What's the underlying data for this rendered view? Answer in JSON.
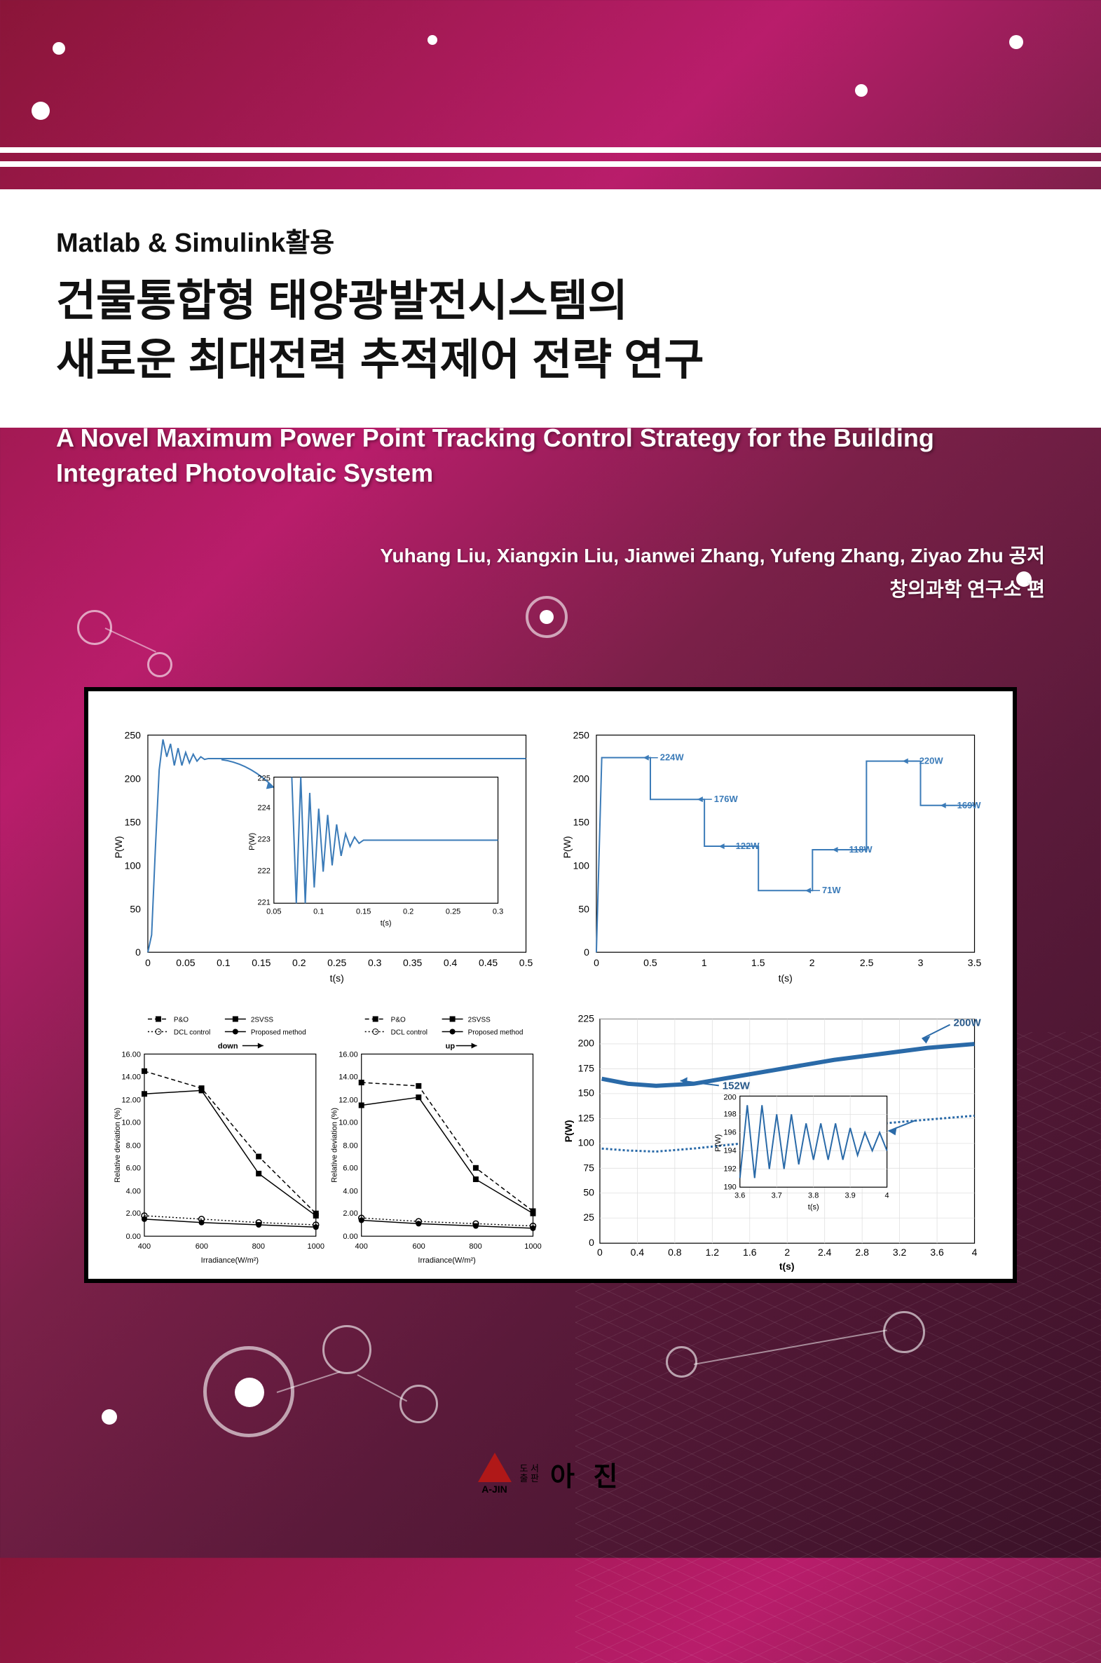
{
  "header": {
    "subtitle": "Matlab & Simulink활용",
    "title_line1": "건물통합형 태양광발전시스템의",
    "title_line2": "새로운 최대전력 추적제어 전략 연구",
    "english_title": "A Novel Maximum Power Point Tracking Control Strategy for the Building Integrated Photovoltaic System",
    "authors": "Yuhang Liu, Xiangxin Liu, Jianwei Zhang, Yufeng Zhang, Ziyao Zhu 공저",
    "editor": "창의과학 연구소 편"
  },
  "publisher": {
    "logo_text": "A-JIN",
    "small_left1": "도 서",
    "small_left2": "출 판",
    "name": "아 진",
    "triangle_color": "#b01818"
  },
  "charts": {
    "chart1": {
      "type": "line",
      "ylabel": "P(W)",
      "xlabel": "t(s)",
      "xlim": [
        0,
        0.5
      ],
      "xticks": [
        0,
        0.05,
        0.1,
        0.15,
        0.2,
        0.25,
        0.3,
        0.35,
        0.4,
        0.45,
        0.5
      ],
      "ylim": [
        0,
        250
      ],
      "yticks": [
        0,
        50,
        100,
        150,
        200,
        250
      ],
      "line_color": "#3b7bb8",
      "data": [
        [
          0,
          0
        ],
        [
          0.005,
          20
        ],
        [
          0.01,
          120
        ],
        [
          0.015,
          210
        ],
        [
          0.02,
          245
        ],
        [
          0.025,
          225
        ],
        [
          0.03,
          240
        ],
        [
          0.035,
          215
        ],
        [
          0.04,
          235
        ],
        [
          0.045,
          215
        ],
        [
          0.05,
          230
        ],
        [
          0.055,
          218
        ],
        [
          0.06,
          228
        ],
        [
          0.065,
          220
        ],
        [
          0.07,
          225
        ],
        [
          0.075,
          222
        ],
        [
          0.08,
          223
        ],
        [
          0.5,
          223
        ]
      ],
      "inset": {
        "ylabel": "P(W)",
        "xlabel": "t(s)",
        "xlim": [
          0.05,
          0.3
        ],
        "xticks": [
          0.05,
          0.1,
          0.15,
          0.2,
          0.25,
          0.3
        ],
        "ylim": [
          221,
          225
        ],
        "yticks": [
          221,
          222,
          223,
          224,
          225
        ],
        "data": [
          [
            0.07,
            225
          ],
          [
            0.075,
            221
          ],
          [
            0.08,
            225
          ],
          [
            0.085,
            221
          ],
          [
            0.09,
            224.5
          ],
          [
            0.095,
            221.5
          ],
          [
            0.1,
            224
          ],
          [
            0.105,
            222
          ],
          [
            0.11,
            223.8
          ],
          [
            0.115,
            222.2
          ],
          [
            0.12,
            223.5
          ],
          [
            0.125,
            222.5
          ],
          [
            0.13,
            223.2
          ],
          [
            0.135,
            222.8
          ],
          [
            0.14,
            223.1
          ],
          [
            0.145,
            222.9
          ],
          [
            0.15,
            223
          ],
          [
            0.3,
            223
          ]
        ]
      },
      "background_color": "#ffffff",
      "grid_color": "#e0e0e0"
    },
    "chart2": {
      "type": "step",
      "ylabel": "P(W)",
      "xlabel": "t(s)",
      "xlim": [
        0,
        3.5
      ],
      "xticks": [
        0,
        0.5,
        1,
        1.5,
        2,
        2.5,
        3,
        3.5
      ],
      "ylim": [
        0,
        250
      ],
      "yticks": [
        0,
        50,
        100,
        150,
        200,
        250
      ],
      "line_color": "#3b7bb8",
      "steps": [
        [
          0,
          0
        ],
        [
          0.05,
          224
        ],
        [
          0.5,
          224
        ],
        [
          0.5,
          176
        ],
        [
          1,
          176
        ],
        [
          1,
          122
        ],
        [
          1.5,
          122
        ],
        [
          1.5,
          71
        ],
        [
          2,
          71
        ],
        [
          2,
          118
        ],
        [
          2.5,
          118
        ],
        [
          2.5,
          220
        ],
        [
          3,
          220
        ],
        [
          3,
          169
        ],
        [
          3.5,
          169
        ]
      ],
      "annotations": [
        {
          "t": 0.55,
          "p": 224,
          "label": "224W"
        },
        {
          "t": 1.05,
          "p": 176,
          "label": "176W"
        },
        {
          "t": 1.25,
          "p": 122,
          "label": "122W"
        },
        {
          "t": 2.05,
          "p": 71,
          "label": "71W"
        },
        {
          "t": 2.3,
          "p": 118,
          "label": "118W"
        },
        {
          "t": 2.95,
          "p": 220,
          "label": "220W"
        },
        {
          "t": 3.3,
          "p": 169,
          "label": "169W"
        }
      ],
      "background_color": "#ffffff"
    },
    "chart3": {
      "type": "line-multi",
      "panels": [
        "down",
        "up"
      ],
      "ylabel": "Relative deviation (%)",
      "xlabel": "Irradiance(W/m²)",
      "xlim": [
        400,
        1000
      ],
      "xticks": [
        400,
        600,
        800,
        1000
      ],
      "ylim": [
        0,
        16
      ],
      "yticks": [
        0,
        2,
        4,
        6,
        8,
        10,
        12,
        14,
        16
      ],
      "legend": [
        "P&O",
        "2SVSS",
        "DCL control",
        "Proposed method"
      ],
      "legend_styles": [
        "dash-filled-square",
        "plain-filled-square",
        "dot-open-circle",
        "solid-filled-circle"
      ],
      "line_color": "#000000",
      "down": {
        "pando": [
          [
            400,
            14.5
          ],
          [
            600,
            13.0
          ],
          [
            800,
            7.0
          ],
          [
            1000,
            2.0
          ]
        ],
        "svss": [
          [
            400,
            12.5
          ],
          [
            600,
            12.8
          ],
          [
            800,
            5.5
          ],
          [
            1000,
            1.8
          ]
        ],
        "dcl": [
          [
            400,
            1.8
          ],
          [
            600,
            1.5
          ],
          [
            800,
            1.2
          ],
          [
            1000,
            1.0
          ]
        ],
        "proposed": [
          [
            400,
            1.5
          ],
          [
            600,
            1.2
          ],
          [
            800,
            1.0
          ],
          [
            1000,
            0.8
          ]
        ]
      },
      "up": {
        "pando": [
          [
            400,
            13.5
          ],
          [
            600,
            13.2
          ],
          [
            800,
            6.0
          ],
          [
            1000,
            2.2
          ]
        ],
        "svss": [
          [
            400,
            11.5
          ],
          [
            600,
            12.2
          ],
          [
            800,
            5.0
          ],
          [
            1000,
            2.0
          ]
        ],
        "dcl": [
          [
            400,
            1.6
          ],
          [
            600,
            1.3
          ],
          [
            800,
            1.1
          ],
          [
            1000,
            0.9
          ]
        ],
        "proposed": [
          [
            400,
            1.4
          ],
          [
            600,
            1.1
          ],
          [
            800,
            0.9
          ],
          [
            1000,
            0.7
          ]
        ]
      },
      "background_color": "#ffffff"
    },
    "chart4": {
      "type": "line",
      "ylabel": "P(W)",
      "xlabel": "t(s)",
      "xlim": [
        0,
        4
      ],
      "xticks": [
        0,
        0.4,
        0.8,
        1.2,
        1.6,
        2,
        2.4,
        2.8,
        3.2,
        3.6,
        4
      ],
      "ylim": [
        0,
        225
      ],
      "yticks": [
        0,
        25,
        50,
        75,
        100,
        125,
        150,
        175,
        200,
        225
      ],
      "line_color": "#2a6aa8",
      "main_top": [
        [
          0.02,
          165
        ],
        [
          0.3,
          160
        ],
        [
          0.6,
          158
        ],
        [
          1.0,
          160
        ],
        [
          1.5,
          168
        ],
        [
          2.0,
          176
        ],
        [
          2.5,
          184
        ],
        [
          3.0,
          190
        ],
        [
          3.5,
          196
        ],
        [
          4.0,
          200
        ]
      ],
      "main_bot": [
        [
          0.02,
          95
        ],
        [
          0.3,
          93
        ],
        [
          0.6,
          92
        ],
        [
          1.0,
          95
        ],
        [
          1.5,
          100
        ],
        [
          2.0,
          108
        ],
        [
          2.5,
          115
        ],
        [
          3.0,
          120
        ],
        [
          3.5,
          124
        ],
        [
          4.0,
          128
        ]
      ],
      "annotations": [
        {
          "t": 1.5,
          "p": 152,
          "label": "152W"
        },
        {
          "t": 3.7,
          "p": 200,
          "label": "200W"
        }
      ],
      "inset": {
        "ylabel": "P(W)",
        "xlabel": "t(s)",
        "xlim": [
          3.6,
          4
        ],
        "xticks": [
          3.6,
          3.7,
          3.8,
          3.9,
          4
        ],
        "ylim": [
          190,
          200
        ],
        "yticks": [
          190,
          192,
          194,
          196,
          198,
          200
        ],
        "data": [
          [
            3.6,
            191
          ],
          [
            3.62,
            199
          ],
          [
            3.64,
            191
          ],
          [
            3.66,
            199
          ],
          [
            3.68,
            192
          ],
          [
            3.7,
            198
          ],
          [
            3.72,
            192
          ],
          [
            3.74,
            198
          ],
          [
            3.76,
            192.5
          ],
          [
            3.78,
            197
          ],
          [
            3.8,
            193
          ],
          [
            3.82,
            197
          ],
          [
            3.84,
            193
          ],
          [
            3.86,
            197
          ],
          [
            3.88,
            193
          ],
          [
            3.9,
            196.5
          ],
          [
            3.92,
            193.5
          ],
          [
            3.94,
            196
          ],
          [
            3.96,
            194
          ],
          [
            3.98,
            196
          ],
          [
            4,
            194
          ]
        ]
      },
      "background_color": "#ffffff"
    }
  },
  "colors": {
    "bg_gradient": [
      "#8a1538",
      "#b91d6b",
      "#7a2048",
      "#5a1a3a",
      "#3a1228"
    ],
    "white": "#ffffff",
    "series_blue": "#3b7bb8",
    "series_blue_dark": "#2a6aa8",
    "black": "#000000"
  }
}
